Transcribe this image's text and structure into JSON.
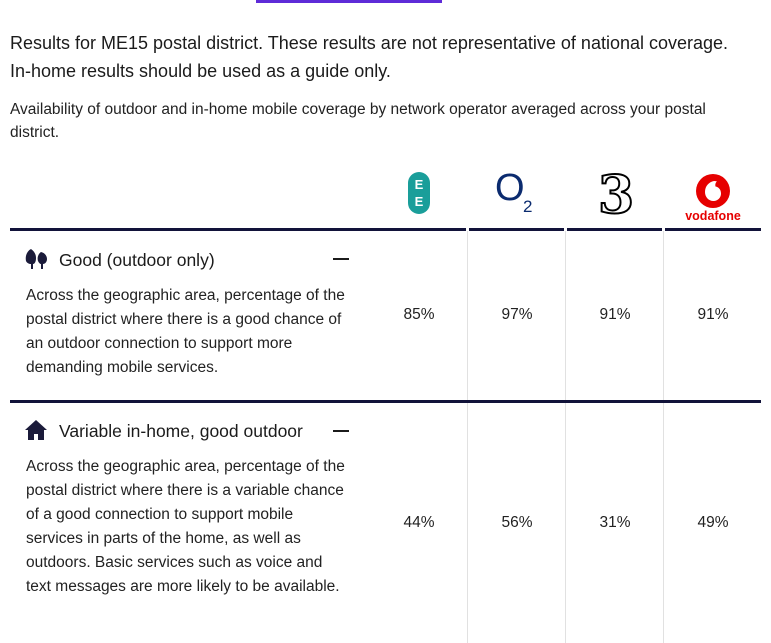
{
  "intro": {
    "line1": "Results for ME15 postal district. These results are not representative of national coverage.",
    "line2": "In-home results should be used as a guide only."
  },
  "subintro": "Availability of outdoor and in-home mobile coverage by network operator averaged across your postal district.",
  "operators": [
    {
      "name": "EE",
      "logo_text": [
        "E",
        "E"
      ],
      "color": "#1a9e9a"
    },
    {
      "name": "O2",
      "logo_text": [
        "O",
        "2"
      ],
      "color": "#0b2b6f"
    },
    {
      "name": "Three",
      "logo_text": "3",
      "color": "#000000"
    },
    {
      "name": "Vodafone",
      "logo_text": "vodafone",
      "color": "#e60000"
    }
  ],
  "sections": [
    {
      "icon": "trees-icon",
      "title": "Good (outdoor only)",
      "description": "Across the geographic area, percentage of the postal district where there is a good chance of an outdoor connection to support more demanding mobile services.",
      "values": [
        "85%",
        "97%",
        "91%",
        "91%"
      ]
    },
    {
      "icon": "house-icon",
      "title": "Variable in-home, good outdoor",
      "description": "Across the geographic area, percentage of the postal district where there is a variable chance of a good connection to support mobile services in parts of the home, as well as outdoors. Basic services such as voice and text messages are more likely to be available.",
      "values": [
        "44%",
        "56%",
        "31%",
        "49%"
      ]
    }
  ]
}
